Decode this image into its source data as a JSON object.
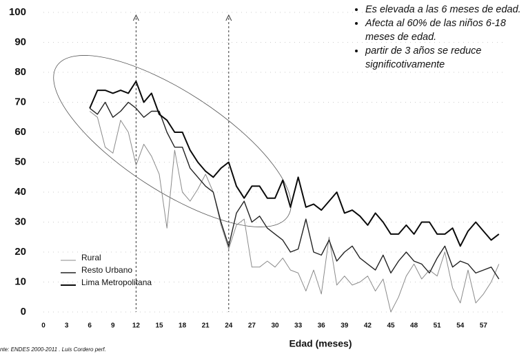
{
  "chart_data": {
    "type": "line",
    "x_label": "Edad (meses)",
    "source": "nte: ENDES 2000-2011 . Luis Cordero perf.",
    "bullets": [
      "Es elevada a las 6 meses de edad.",
      "Afecta al 60% de las niños 6-18 meses de edad.",
      "partir de 3 años se reduce significotivamente"
    ],
    "x": [
      6,
      7,
      8,
      9,
      10,
      11,
      12,
      13,
      14,
      15,
      16,
      17,
      18,
      19,
      20,
      21,
      22,
      23,
      24,
      25,
      26,
      27,
      28,
      29,
      30,
      31,
      32,
      33,
      34,
      35,
      36,
      37,
      38,
      39,
      40,
      41,
      42,
      43,
      44,
      45,
      46,
      47,
      48,
      49,
      50,
      51,
      52,
      53,
      54,
      55,
      56,
      57,
      58,
      59
    ],
    "series": [
      {
        "name": "Rural",
        "color": "#8a8a8a",
        "values": [
          67,
          65,
          55,
          53,
          64,
          60,
          49,
          56,
          52,
          46,
          28,
          54,
          40,
          37,
          41,
          46,
          40,
          29,
          21,
          29,
          31,
          15,
          15,
          17,
          15,
          18,
          14,
          13,
          7,
          14,
          6,
          25,
          9,
          12,
          9,
          10,
          12,
          7,
          11,
          0,
          5,
          12,
          16,
          11,
          14,
          12,
          20,
          8,
          3,
          14,
          3,
          6,
          10,
          16
        ]
      },
      {
        "name": "Resto Urbano",
        "color": "#222222",
        "values": [
          68,
          66,
          70,
          65,
          67,
          70,
          68,
          65,
          67,
          67,
          60,
          55,
          55,
          48,
          45,
          42,
          40,
          30,
          22,
          33,
          37,
          30,
          32,
          28,
          26,
          24,
          20,
          21,
          31,
          20,
          19,
          24,
          17,
          20,
          22,
          18,
          16,
          14,
          19,
          13,
          17,
          20,
          17,
          16,
          13,
          18,
          22,
          15,
          17,
          16,
          13,
          14,
          15,
          11
        ]
      },
      {
        "name": "Lima Metropolitana",
        "color": "#0a0a0a",
        "values": [
          68,
          74,
          74,
          73,
          74,
          73,
          77,
          70,
          73,
          66,
          64,
          60,
          60,
          54,
          50,
          47,
          45,
          48,
          50,
          42,
          38,
          42,
          42,
          38,
          38,
          44,
          35,
          45,
          35,
          36,
          34,
          37,
          40,
          33,
          34,
          32,
          29,
          33,
          30,
          26,
          26,
          29,
          26,
          30,
          30,
          26,
          26,
          28,
          22,
          27,
          30,
          27,
          24,
          26
        ]
      }
    ],
    "vlines": [
      12,
      24
    ],
    "xlim": [
      0,
      60
    ],
    "ylim": [
      0,
      100
    ],
    "xticks": [
      0,
      3,
      6,
      9,
      12,
      15,
      18,
      21,
      24,
      27,
      30,
      33,
      36,
      39,
      42,
      45,
      48,
      51,
      54,
      57
    ],
    "yticks": [
      0,
      10,
      20,
      30,
      40,
      50,
      60,
      70,
      80,
      90,
      100
    ],
    "grid": true
  }
}
